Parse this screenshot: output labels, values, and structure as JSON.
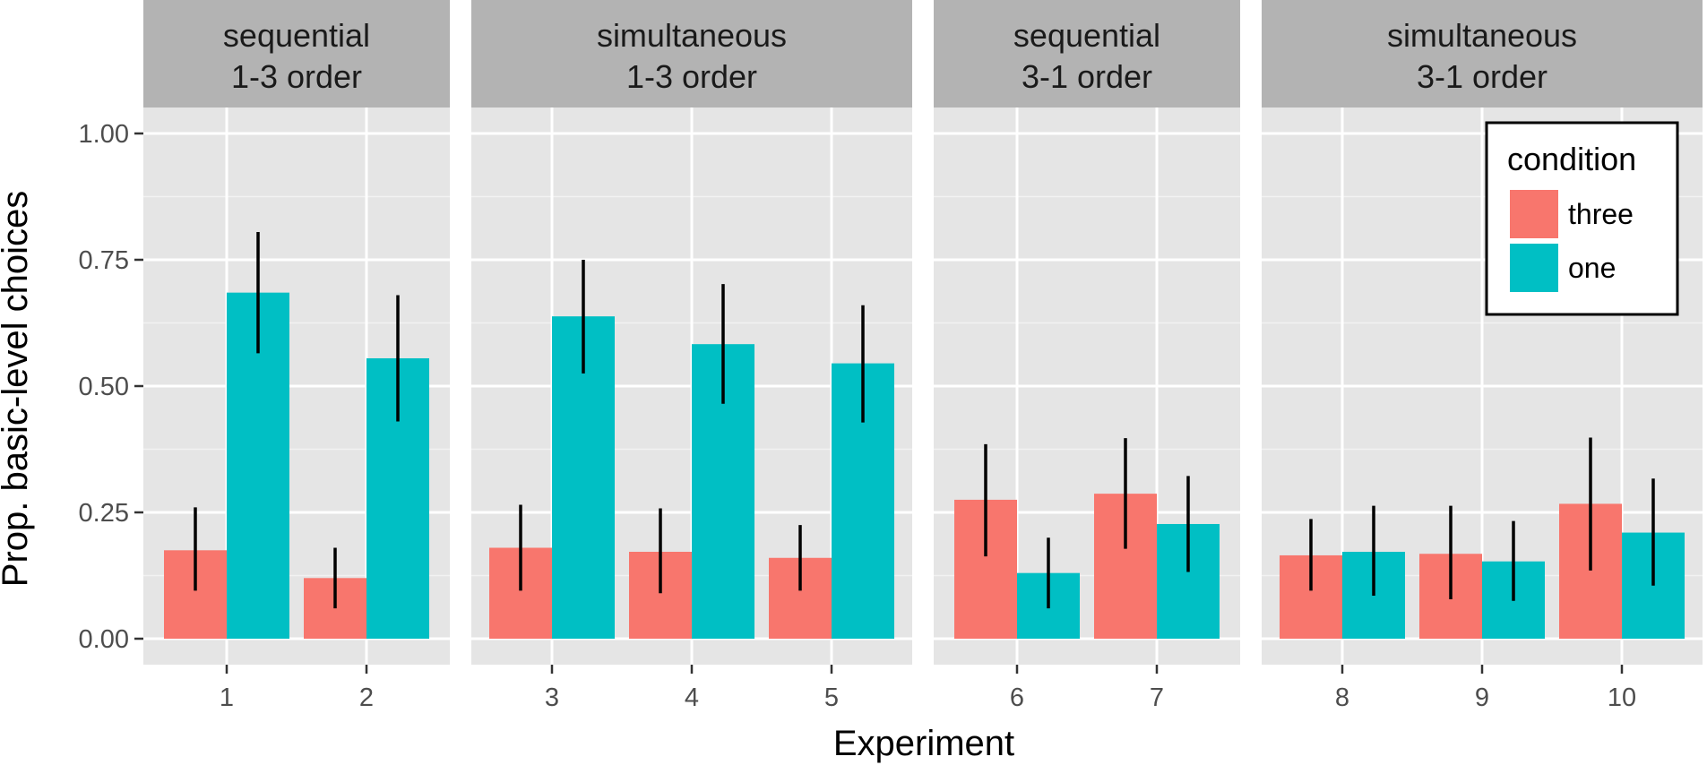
{
  "chart_data": {
    "type": "bar",
    "xlabel": "Experiment",
    "ylabel": "Prop. basic-level choices",
    "ylim": [
      0,
      1
    ],
    "yticks": [
      "0.00",
      "0.25",
      "0.50",
      "0.75",
      "1.00"
    ],
    "ytick_values": [
      0,
      0.25,
      0.5,
      0.75,
      1.0
    ],
    "grid": true,
    "legend": {
      "title": "condition",
      "placement": "top-right",
      "entries": [
        {
          "label": "three",
          "color": "#F8766D"
        },
        {
          "label": "one",
          "color": "#00BFC4"
        }
      ]
    },
    "series_colors": {
      "three": "#F8766D",
      "one": "#00BFC4"
    },
    "panels": [
      {
        "title_line1": "sequential",
        "title_line2": "1-3 order",
        "categories": [
          "1",
          "2"
        ],
        "series": [
          {
            "name": "three",
            "values": [
              0.175,
              0.12
            ],
            "err_low": [
              0.095,
              0.06
            ],
            "err_high": [
              0.26,
              0.18
            ]
          },
          {
            "name": "one",
            "values": [
              0.685,
              0.555
            ],
            "err_low": [
              0.565,
              0.43
            ],
            "err_high": [
              0.805,
              0.68
            ]
          }
        ]
      },
      {
        "title_line1": "simultaneous",
        "title_line2": "1-3 order",
        "categories": [
          "3",
          "4",
          "5"
        ],
        "series": [
          {
            "name": "three",
            "values": [
              0.18,
              0.172,
              0.16
            ],
            "err_low": [
              0.095,
              0.09,
              0.095
            ],
            "err_high": [
              0.265,
              0.258,
              0.225
            ]
          },
          {
            "name": "one",
            "values": [
              0.638,
              0.583,
              0.545
            ],
            "err_low": [
              0.525,
              0.465,
              0.428
            ],
            "err_high": [
              0.75,
              0.702,
              0.66
            ]
          }
        ]
      },
      {
        "title_line1": "sequential",
        "title_line2": "3-1 order",
        "categories": [
          "6",
          "7"
        ],
        "series": [
          {
            "name": "three",
            "values": [
              0.275,
              0.287
            ],
            "err_low": [
              0.163,
              0.178
            ],
            "err_high": [
              0.385,
              0.397
            ]
          },
          {
            "name": "one",
            "values": [
              0.13,
              0.227
            ],
            "err_low": [
              0.06,
              0.132
            ],
            "err_high": [
              0.2,
              0.322
            ]
          }
        ]
      },
      {
        "title_line1": "simultaneous",
        "title_line2": "3-1 order",
        "categories": [
          "8",
          "9",
          "10"
        ],
        "series": [
          {
            "name": "three",
            "values": [
              0.165,
              0.168,
              0.267
            ],
            "err_low": [
              0.095,
              0.078,
              0.135
            ],
            "err_high": [
              0.237,
              0.263,
              0.398
            ]
          },
          {
            "name": "one",
            "values": [
              0.172,
              0.153,
              0.21
            ],
            "err_low": [
              0.085,
              0.075,
              0.105
            ],
            "err_high": [
              0.263,
              0.233,
              0.317
            ]
          }
        ]
      }
    ]
  }
}
